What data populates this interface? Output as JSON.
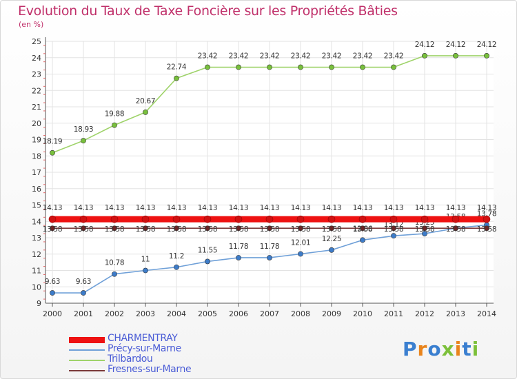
{
  "title": "Evolution du Taux de Taxe Foncière sur les Propriétés Bâties",
  "unit_label": "(en %)",
  "logo": {
    "text": "Proxiti",
    "letters": [
      {
        "ch": "P",
        "color": "#3a7fd0"
      },
      {
        "ch": "r",
        "color": "#e9841c"
      },
      {
        "ch": "o",
        "color": "#3a7fd0"
      },
      {
        "ch": "x",
        "color": "#7cc03a"
      },
      {
        "ch": "i",
        "color": "#e9841c"
      },
      {
        "ch": "t",
        "color": "#3a7fd0"
      },
      {
        "ch": "i",
        "color": "#7cc03a"
      }
    ]
  },
  "chart_data": {
    "type": "line",
    "x": [
      2000,
      2001,
      2002,
      2003,
      2004,
      2005,
      2006,
      2007,
      2008,
      2009,
      2010,
      2011,
      2012,
      2013,
      2014
    ],
    "ylim": [
      9,
      25
    ],
    "yticks": [
      9,
      10,
      11,
      12,
      13,
      14,
      15,
      16,
      17,
      18,
      19,
      20,
      21,
      22,
      23,
      24,
      25
    ],
    "grid": true,
    "legend_position": "bottom-left",
    "series": [
      {
        "name": "CHARMENTRAY",
        "color": "#ee1111",
        "marker_color": "#d01010",
        "values": [
          14.13,
          14.13,
          14.13,
          14.13,
          14.13,
          14.13,
          14.13,
          14.13,
          14.13,
          14.13,
          14.13,
          14.13,
          14.13,
          14.13,
          14.13
        ],
        "labels": [
          "14.13",
          "14.13",
          "14.13",
          "14.13",
          "14.13",
          "14.13",
          "14.13",
          "14.13",
          "14.13",
          "14.13",
          "14.13",
          "14.13",
          "14.13",
          "14.13",
          "14.13"
        ]
      },
      {
        "name": "Précy-sur-Marne",
        "color": "#6fa0d8",
        "marker_color": "#3d7cc9",
        "values": [
          9.63,
          9.63,
          10.78,
          11,
          11.2,
          11.55,
          11.78,
          11.78,
          12.01,
          12.25,
          12.86,
          13.12,
          13.25,
          13.58,
          13.78
        ],
        "labels": [
          "9.63",
          "9.63",
          "10.78",
          "11",
          "11.2",
          "11.55",
          "11.78",
          "11.78",
          "12.01",
          "12.25",
          "12.86",
          "13.12",
          "13.25",
          "13.58",
          "13.78"
        ]
      },
      {
        "name": "Trilbardou",
        "color": "#9fd36a",
        "marker_color": "#78c03c",
        "values": [
          18.19,
          18.93,
          19.88,
          20.67,
          22.74,
          23.42,
          23.42,
          23.42,
          23.42,
          23.42,
          23.42,
          23.42,
          24.12,
          24.12,
          24.12
        ],
        "labels": [
          "18.19",
          "18.93",
          "19.88",
          "20.67",
          "22.74",
          "23.42",
          "23.42",
          "23.42",
          "23.42",
          "23.42",
          "23.42",
          "23.42",
          "24.12",
          "24.12",
          "24.12"
        ]
      },
      {
        "name": "Fresnes-sur-Marne",
        "color": "#7a3a3a",
        "marker_color": "#6a2525",
        "values": [
          13.58,
          13.58,
          13.58,
          13.58,
          13.58,
          13.58,
          13.58,
          13.58,
          13.58,
          13.58,
          13.58,
          13.58,
          13.58,
          13.58,
          13.58
        ],
        "labels": [
          "13.58",
          "13.58",
          "13.58",
          "13.58",
          "13.58",
          "13.58",
          "13.58",
          "13.58",
          "13.58",
          "13.58",
          "13.58",
          "13.58",
          "13.58",
          "13.58",
          "13.58"
        ]
      }
    ]
  }
}
